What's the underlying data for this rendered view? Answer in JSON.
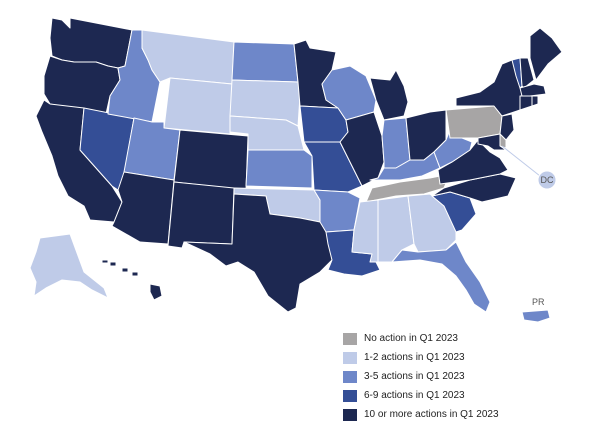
{
  "colors": {
    "no_action": "#a7a5a5",
    "a1_2": "#bfcbe8",
    "a3_5": "#6e87c9",
    "a6_9": "#344e96",
    "a10_plus": "#1d2851",
    "background": "#ffffff"
  },
  "labels": {
    "dc": "DC",
    "pr": "PR"
  },
  "legend": [
    {
      "label": "No action in Q1 2023",
      "color": "#a7a5a5"
    },
    {
      "label": "1-2 actions in Q1 2023",
      "color": "#bfcbe8"
    },
    {
      "label": "3-5 actions in Q1 2023",
      "color": "#6e87c9"
    },
    {
      "label": "6-9 actions in Q1 2023",
      "color": "#344e96"
    },
    {
      "label": "10 or more actions in Q1 2023",
      "color": "#1d2851"
    }
  ],
  "states": {
    "washington": "10_plus",
    "oregon": "10_plus",
    "california": "10_plus",
    "nevada": "6_9",
    "idaho": "3_5",
    "montana": "1_2",
    "wyoming": "1_2",
    "utah": "3_5",
    "arizona": "10_plus",
    "colorado": "10_plus",
    "new_mexico": "10_plus",
    "north_dakota": "3_5",
    "south_dakota": "1_2",
    "nebraska": "1_2",
    "kansas": "3_5",
    "oklahoma": "1_2",
    "texas": "10_plus",
    "minnesota": "10_plus",
    "iowa": "6_9",
    "missouri": "6_9",
    "arkansas": "3_5",
    "louisiana": "6_9",
    "wisconsin": "3_5",
    "illinois": "10_plus",
    "michigan": "10_plus",
    "indiana": "3_5",
    "ohio": "10_plus",
    "kentucky": "3_5",
    "tennessee": "none",
    "mississippi": "1_2",
    "alabama": "1_2",
    "georgia": "1_2",
    "florida": "3_5",
    "south_carolina": "6_9",
    "north_carolina": "10_plus",
    "virginia": "10_plus",
    "west_virginia": "3_5",
    "pennsylvania": "none",
    "new_york": "10_plus",
    "vermont": "6_9",
    "new_hampshire": "10_plus",
    "maine": "10_plus",
    "massachusetts": "10_plus",
    "connecticut": "10_plus",
    "rhode_island": "10_plus",
    "new_jersey": "10_plus",
    "delaware": "none",
    "maryland": "10_plus",
    "dc": "1_2",
    "alaska": "1_2",
    "hawaii": "10_plus",
    "puerto_rico": "3_5"
  }
}
